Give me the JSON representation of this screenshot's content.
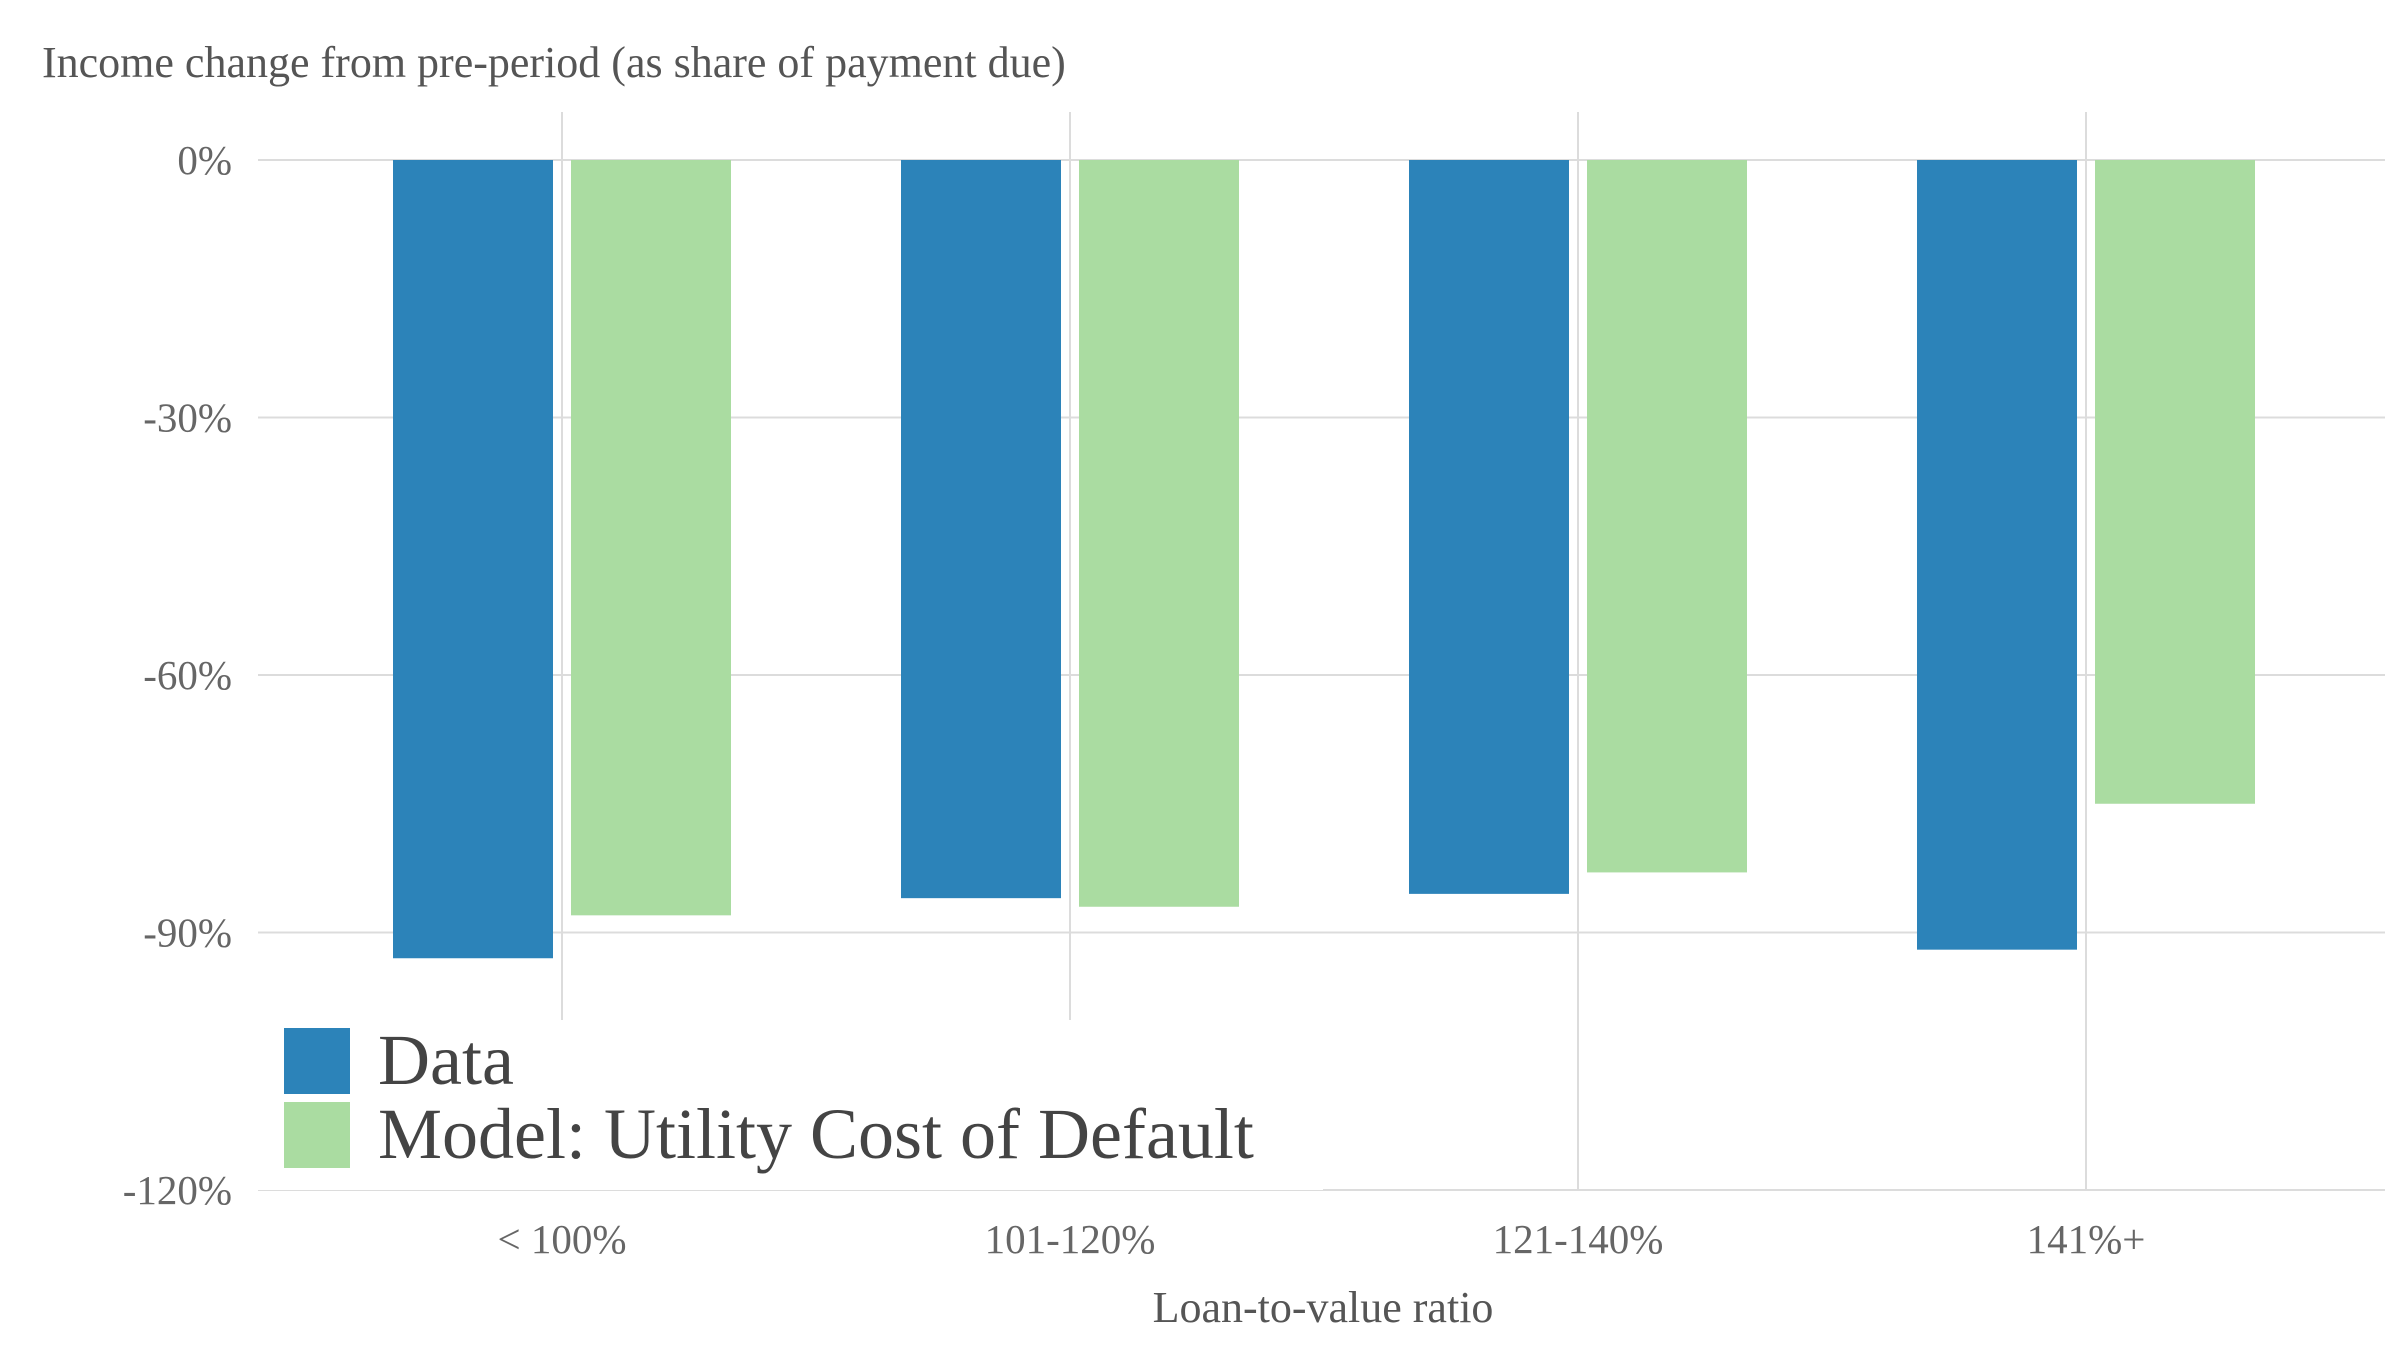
{
  "chart_data": {
    "type": "bar",
    "ylabel": "Income change from pre-period (as share of payment due)",
    "xlabel": "Loan-to-value ratio",
    "categories": [
      "< 100%",
      "101-120%",
      "121-140%",
      "141%+"
    ],
    "series": [
      {
        "name": "Data",
        "values": [
          -93,
          -86,
          -85.5,
          -92
        ]
      },
      {
        "name": "Model: Utility Cost of Default",
        "values": [
          -88,
          -87,
          -83,
          -75
        ]
      }
    ],
    "ylim": [
      -120,
      0
    ],
    "yticks": [
      0,
      -30,
      -60,
      -90,
      -120
    ],
    "ytick_labels": [
      "0%",
      "-30%",
      "-60%",
      "-90%",
      "-120%"
    ],
    "colors": {
      "Data": "#2c83b9",
      "Model: Utility Cost of Default": "#aadca1"
    },
    "grid": true,
    "legend_position": "bottom-left"
  }
}
